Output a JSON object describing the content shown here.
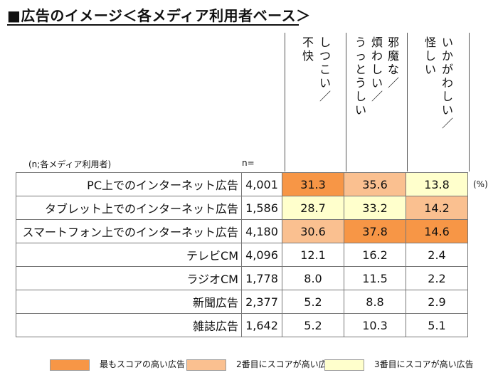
{
  "title": "■広告のイメージ＜各メディア利用者ベース＞",
  "sample_note": "(n;各メディア利用者)",
  "n_header": "n=",
  "unit": "(%)",
  "colors": {
    "rank1": "#f79646",
    "rank2": "#fac090",
    "rank3": "#ffffcc",
    "none": "#ffffff"
  },
  "chart_data": {
    "type": "table",
    "columns": [
      {
        "chars": [
          "し",
          "つ",
          "こ",
          "い",
          "／"
        ],
        "chars2": [
          "不",
          "快"
        ]
      },
      {
        "chars": [
          "邪",
          "魔",
          "な",
          "／"
        ],
        "chars2": [
          "煩",
          "わ",
          "し",
          "い",
          "／"
        ],
        "chars3": [
          "う",
          "っ",
          "と",
          "う",
          "し",
          "い"
        ]
      },
      {
        "chars": [
          "い",
          "か",
          "が",
          "わ",
          "し",
          "い",
          "／"
        ],
        "chars2": [
          "怪",
          "し",
          "い"
        ]
      }
    ],
    "rows": [
      {
        "label": "PC上でのインターネット広告",
        "n": "4,001",
        "values": [
          "31.3",
          "35.6",
          "13.8"
        ],
        "ranks": [
          1,
          2,
          3
        ]
      },
      {
        "label": "タブレット上でのインターネット広告",
        "n": "1,586",
        "values": [
          "28.7",
          "33.2",
          "14.2"
        ],
        "ranks": [
          3,
          3,
          2
        ]
      },
      {
        "label": "スマートフォン上でのインターネット広告",
        "n": "4,180",
        "values": [
          "30.6",
          "37.8",
          "14.6"
        ],
        "ranks": [
          2,
          1,
          1
        ]
      },
      {
        "label": "テレビCM",
        "n": "4,096",
        "values": [
          "12.1",
          "16.2",
          "2.4"
        ],
        "ranks": [
          0,
          0,
          0
        ]
      },
      {
        "label": "ラジオCM",
        "n": "1,778",
        "values": [
          "8.0",
          "11.5",
          "2.2"
        ],
        "ranks": [
          0,
          0,
          0
        ]
      },
      {
        "label": "新聞広告",
        "n": "2,377",
        "values": [
          "5.2",
          "8.8",
          "2.9"
        ],
        "ranks": [
          0,
          0,
          0
        ]
      },
      {
        "label": "雑誌広告",
        "n": "1,642",
        "values": [
          "5.2",
          "10.3",
          "5.1"
        ],
        "ranks": [
          0,
          0,
          0
        ]
      }
    ]
  },
  "legend": [
    {
      "label": "最もスコアの高い広告",
      "rank": 1
    },
    {
      "label": "2番目にスコアが高い広告",
      "rank": 2
    },
    {
      "label": "3番目にスコアが高い広告",
      "rank": 3
    }
  ]
}
